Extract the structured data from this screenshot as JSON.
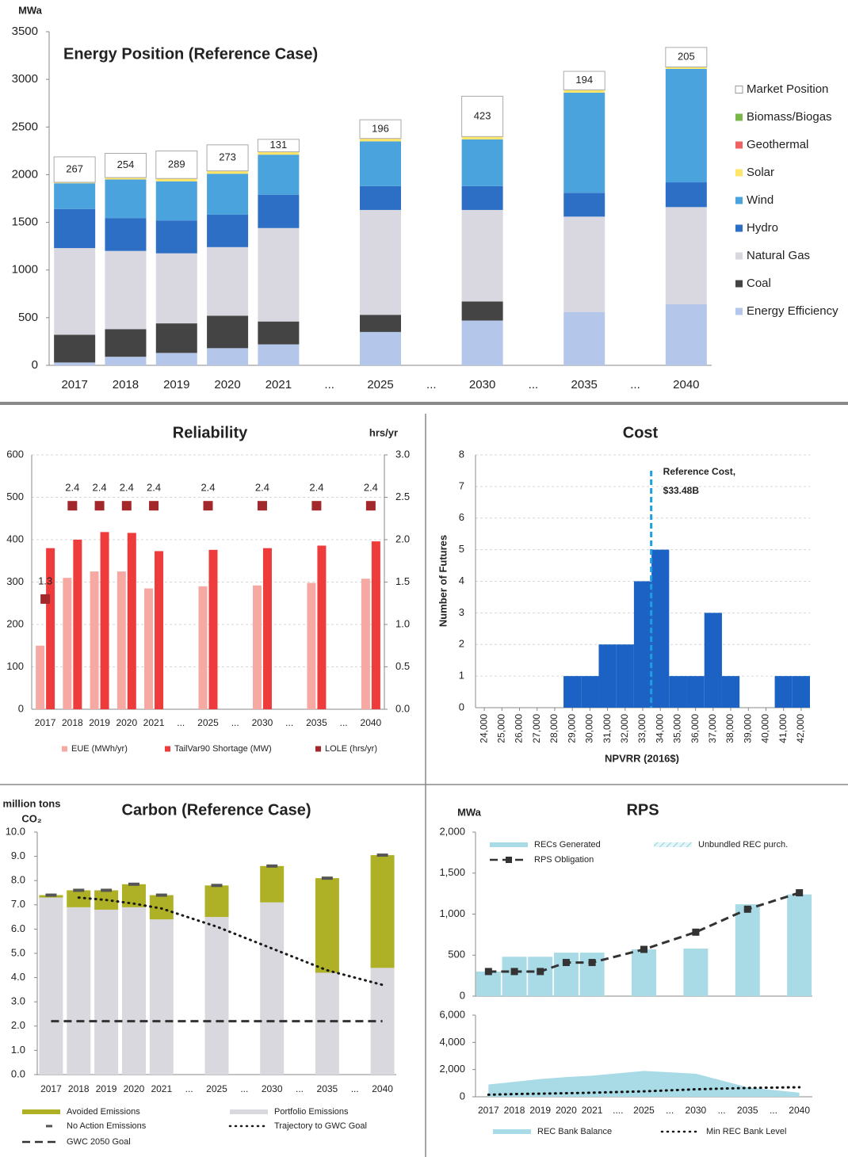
{
  "chart_data": [
    {
      "type": "bar",
      "title": "Energy Position (Reference Case)",
      "ylabel": "MWa",
      "stacked": true,
      "categories": [
        "2017",
        "2018",
        "2019",
        "2020",
        "2021",
        "2025",
        "2030",
        "2035",
        "2040"
      ],
      "axis_breaks": [
        "...",
        "...",
        "...",
        "..."
      ],
      "ylim": [
        0,
        3500
      ],
      "yticks": [
        0,
        500,
        1000,
        1500,
        2000,
        2500,
        3000,
        3500
      ],
      "series": [
        {
          "name": "Energy Efficiency",
          "color": "#b4c6ea",
          "values": [
            30,
            90,
            130,
            180,
            220,
            350,
            470,
            560,
            640
          ]
        },
        {
          "name": "Coal",
          "color": "#444444",
          "values": [
            290,
            290,
            310,
            340,
            240,
            180,
            200,
            0,
            0
          ]
        },
        {
          "name": "Natural Gas",
          "color": "#d9d8e0",
          "values": [
            910,
            820,
            735,
            720,
            980,
            1100,
            960,
            1000,
            1020
          ]
        },
        {
          "name": "Hydro",
          "color": "#2e6fc6",
          "values": [
            410,
            345,
            345,
            340,
            350,
            250,
            250,
            250,
            260
          ]
        },
        {
          "name": "Wind",
          "color": "#4aa3dc",
          "values": [
            270,
            405,
            410,
            430,
            420,
            470,
            490,
            1050,
            1190
          ]
        },
        {
          "name": "Solar",
          "color": "#ffe66b",
          "values": [
            10,
            20,
            30,
            30,
            30,
            30,
            30,
            30,
            20
          ]
        },
        {
          "name": "Geothermal",
          "color": "#f06262",
          "values": [
            0,
            0,
            0,
            0,
            0,
            0,
            0,
            0,
            0
          ]
        },
        {
          "name": "Biomass/Biogas",
          "color": "#7ab648",
          "values": [
            0,
            0,
            0,
            0,
            0,
            0,
            0,
            0,
            0
          ]
        },
        {
          "name": "Market Position",
          "color": "#ffffff",
          "show_values": true,
          "values": [
            267,
            254,
            289,
            273,
            131,
            196,
            423,
            194,
            205
          ]
        }
      ]
    },
    {
      "type": "bar",
      "title": "Reliability",
      "y2label": "hrs/yr",
      "grid": true,
      "categories": [
        "2017",
        "2018",
        "2019",
        "2020",
        "2021",
        "2025",
        "2030",
        "2035",
        "2040"
      ],
      "axis_breaks": [
        "...",
        "...",
        "...",
        "..."
      ],
      "ylim": [
        0,
        600
      ],
      "yticks": [
        0,
        100,
        200,
        300,
        400,
        500,
        600
      ],
      "y2lim": [
        0,
        3
      ],
      "y2ticks": [
        {
          "value": 0,
          "label": "0.0"
        },
        0.5,
        {
          "value": 1,
          "label": "1.0"
        },
        1.5,
        {
          "value": 2,
          "label": "2.0"
        },
        2.5,
        {
          "value": 3,
          "label": "3.0"
        }
      ],
      "series": [
        {
          "name": "EUE (MWh/yr)",
          "color": "#f6a9a3",
          "values": [
            150,
            310,
            325,
            325,
            285,
            290,
            292,
            298,
            308
          ]
        },
        {
          "name": "TailVar90 Shortage (MW)",
          "color": "#ee3b3b",
          "values": [
            380,
            400,
            418,
            416,
            373,
            376,
            380,
            386,
            396
          ]
        },
        {
          "name": "LOLE (hrs/yr)",
          "type": "scatter",
          "axis": "y2",
          "color": "#a3282b",
          "show_values": true,
          "values": [
            1.3,
            2.4,
            2.4,
            2.4,
            2.4,
            2.4,
            2.4,
            2.4,
            2.4
          ]
        }
      ]
    },
    {
      "type": "histogram",
      "title": "Cost",
      "xlabel": "NPVRR (2016$)",
      "ylabel": "Number of Futures",
      "color": "#1b62c4",
      "grid": true,
      "bins": [
        23500,
        24500,
        25500,
        26500,
        27500,
        28500,
        29500,
        30500,
        31500,
        32500,
        33500,
        34500,
        35500,
        36500,
        37500,
        38500,
        39500,
        40500,
        41500,
        42500
      ],
      "values": [
        0,
        0,
        0,
        0,
        0,
        1,
        1,
        2,
        2,
        4,
        5,
        1,
        1,
        3,
        1,
        0,
        0,
        1,
        1
      ],
      "xlim": [
        23500,
        42500
      ],
      "xticks": [
        {
          "value": 24000,
          "label": "24,000"
        },
        {
          "value": 25000,
          "label": "25,000"
        },
        {
          "value": 26000,
          "label": "26,000"
        },
        {
          "value": 27000,
          "label": "27,000"
        },
        {
          "value": 28000,
          "label": "28,000"
        },
        {
          "value": 29000,
          "label": "29,000"
        },
        {
          "value": 30000,
          "label": "30,000"
        },
        {
          "value": 31000,
          "label": "31,000"
        },
        {
          "value": 32000,
          "label": "32,000"
        },
        {
          "value": 33000,
          "label": "33,000"
        },
        {
          "value": 34000,
          "label": "34,000"
        },
        {
          "value": 35000,
          "label": "35,000"
        },
        {
          "value": 36000,
          "label": "36,000"
        },
        {
          "value": 37000,
          "label": "37,000"
        },
        {
          "value": 38000,
          "label": "38,000"
        },
        {
          "value": 39000,
          "label": "39,000"
        },
        {
          "value": 40000,
          "label": "40,000"
        },
        {
          "value": 41000,
          "label": "41,000"
        },
        {
          "value": 42000,
          "label": "42,000"
        }
      ],
      "ylim": [
        0,
        8
      ],
      "yticks": [
        0,
        1,
        2,
        3,
        4,
        5,
        6,
        7,
        8
      ],
      "reference_line": {
        "value": 33480,
        "color": "#1f9ee0",
        "label": [
          "Reference Cost,",
          "$33.48B"
        ]
      }
    },
    {
      "type": "bar",
      "title": "Carbon (Reference Case)",
      "ylabel": [
        "million tons",
        "CO₂"
      ],
      "stacked": true,
      "categories": [
        "2017",
        "2018",
        "2019",
        "2020",
        "2021",
        "2025",
        "2030",
        "2035",
        "2040"
      ],
      "axis_breaks": [
        "...",
        "...",
        "...",
        "..."
      ],
      "ylim": [
        0,
        10
      ],
      "yticks": [
        {
          "value": 0,
          "label": "0.0"
        },
        {
          "value": 1,
          "label": "1.0"
        },
        {
          "value": 2,
          "label": "2.0"
        },
        {
          "value": 3,
          "label": "3.0"
        },
        {
          "value": 4,
          "label": "4.0"
        },
        {
          "value": 5,
          "label": "5.0"
        },
        {
          "value": 6,
          "label": "6.0"
        },
        {
          "value": 7,
          "label": "7.0"
        },
        {
          "value": 8,
          "label": "8.0"
        },
        {
          "value": 9,
          "label": "9.0"
        },
        {
          "value": 10,
          "label": "10.0"
        }
      ],
      "series": [
        {
          "name": "Portfolio Emissions",
          "color": "#d9d8de",
          "values": [
            7.3,
            6.9,
            6.8,
            6.9,
            6.4,
            6.5,
            7.1,
            4.2,
            4.4
          ]
        },
        {
          "name": "Avoided Emissions",
          "color": "#aeb126",
          "values": [
            0.1,
            0.7,
            0.8,
            0.95,
            1.0,
            1.3,
            1.5,
            3.9,
            4.65
          ]
        },
        {
          "name": "No Action Emissions",
          "type": "marker",
          "color": "#555555",
          "values": [
            7.4,
            7.6,
            7.6,
            7.85,
            7.4,
            7.8,
            8.6,
            8.1,
            9.05
          ]
        },
        {
          "name": "Trajectory to GWC Goal",
          "type": "line",
          "line_style": "dotted",
          "color": "#1a1a1a",
          "values": [
            null,
            7.3,
            7.2,
            7.05,
            6.85,
            6.1,
            5.2,
            4.3,
            3.7
          ]
        },
        {
          "name": "GWC 2050 Goal",
          "type": "line",
          "line_style": "dashed",
          "color": "#333333",
          "values": [
            2.2,
            2.2,
            2.2,
            2.2,
            2.2,
            2.2,
            2.2,
            2.2,
            2.2
          ]
        }
      ]
    },
    {
      "type": "bar",
      "title": "RPS",
      "ylabel": "MWa",
      "stacked": true,
      "ylim": [
        0,
        2000
      ],
      "yticks": [
        0,
        500,
        {
          "value": 1000,
          "label": "1,000"
        },
        {
          "value": 1500,
          "label": "1,500"
        },
        {
          "value": 2000,
          "label": "2,000"
        }
      ],
      "series": [
        {
          "name": "RECs Generated",
          "color": "#a9dbe6",
          "values": [
            300,
            480,
            480,
            530,
            530,
            570,
            580,
            1120,
            1240
          ]
        },
        {
          "name": "Unbundled REC purch.",
          "color": "#a9dbe6",
          "hatch": true,
          "values": [
            0,
            0,
            0,
            0,
            0,
            0,
            0,
            0,
            0
          ]
        },
        {
          "name": "RPS Obligation",
          "type": "line",
          "line_style": "dashed",
          "marker": "square",
          "color": "#333333",
          "values": [
            300,
            300,
            300,
            410,
            410,
            570,
            780,
            1060,
            1260
          ]
        }
      ]
    },
    {
      "type": "area",
      "categories": [
        "2017",
        "2018",
        "2019",
        "2020",
        "2021",
        "2025",
        "2030",
        "2035",
        "2040"
      ],
      "axis_breaks": [
        "....",
        "...",
        "...",
        "..."
      ],
      "ylim": [
        0,
        6000
      ],
      "yticks": [
        0,
        {
          "value": 2000,
          "label": "2,000"
        },
        {
          "value": 4000,
          "label": "4,000"
        },
        {
          "value": 6000,
          "label": "6,000"
        }
      ],
      "series": [
        {
          "name": "REC Bank Balance",
          "type": "area",
          "color": "#a9dbe6",
          "values": [
            900,
            1100,
            1300,
            1450,
            1550,
            1900,
            1700,
            700,
            300
          ]
        },
        {
          "name": "Min REC Bank Level",
          "type": "line",
          "line_style": "dotted",
          "color": "#111111",
          "values": [
            150,
            200,
            230,
            260,
            300,
            400,
            550,
            650,
            700
          ]
        }
      ]
    }
  ]
}
